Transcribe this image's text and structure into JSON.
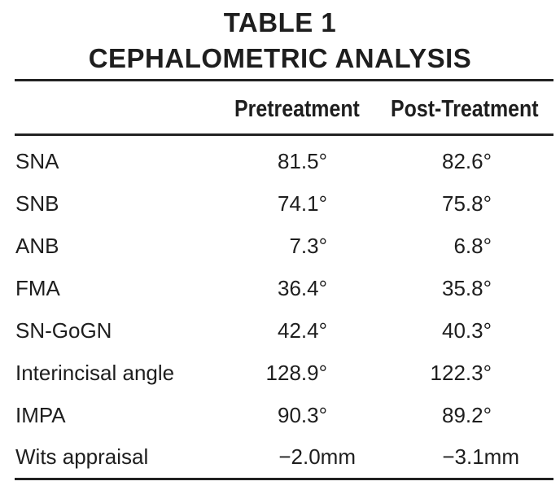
{
  "table": {
    "title_line1": "TABLE 1",
    "title_line2": "CEPHALOMETRIC ANALYSIS",
    "columns": [
      "Pretreatment",
      "Post-Treatment"
    ],
    "rows": [
      {
        "label": "SNA",
        "pre": "81.5°",
        "post": "82.6°"
      },
      {
        "label": "SNB",
        "pre": "74.1°",
        "post": "75.8°"
      },
      {
        "label": "ANB",
        "pre": "7.3°",
        "post": "6.8°"
      },
      {
        "label": "FMA",
        "pre": "36.4°",
        "post": "35.8°"
      },
      {
        "label": "SN-GoGN",
        "pre": "42.4°",
        "post": "40.3°"
      },
      {
        "label": "Interincisal angle",
        "pre": "128.9°",
        "post": "122.3°"
      },
      {
        "label": "IMPA",
        "pre": "90.3°",
        "post": "89.2°"
      },
      {
        "label": "Wits appraisal",
        "pre": "−2.0mm",
        "post": "−3.1mm"
      }
    ]
  }
}
